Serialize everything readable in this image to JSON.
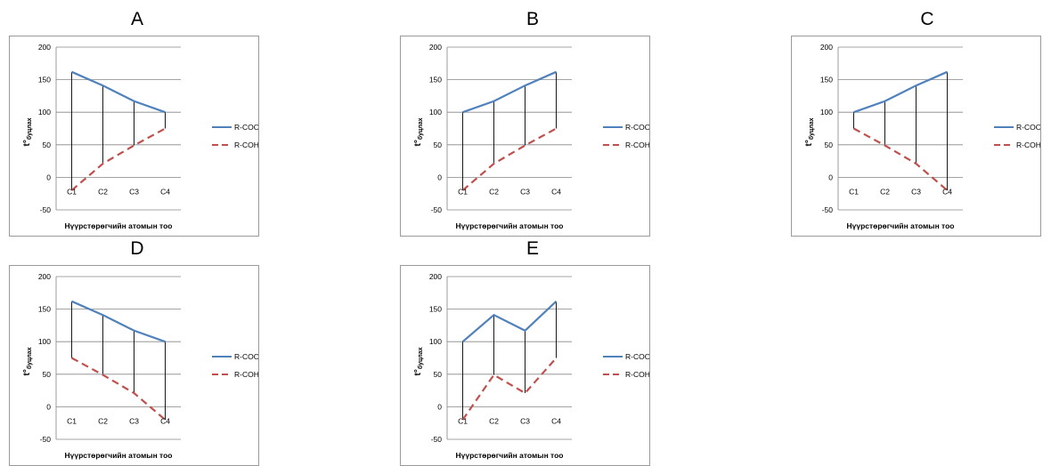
{
  "legend": {
    "cooh": "R-COOH",
    "coh": "R-COH"
  },
  "axis": {
    "ylabel_main": "t°",
    "ylabel_sub": "буцлах",
    "xlabel": "Нүүрстөрөгчийн атомын тоо"
  },
  "colors": {
    "cooh": "#4f81bd",
    "coh": "#c0504d",
    "grid": "#868686",
    "drop": "#000000"
  },
  "chart_data": [
    {
      "type": "line",
      "title": "A",
      "categories": [
        "C1",
        "C2",
        "C3",
        "C4"
      ],
      "ylim": [
        -50,
        200
      ],
      "yticks": [
        -50,
        0,
        50,
        100,
        150,
        200
      ],
      "series": [
        {
          "name": "R-COOH",
          "values": [
            162,
            141,
            117,
            100
          ]
        },
        {
          "name": "R-COH",
          "values": [
            -20,
            21,
            49,
            75
          ]
        }
      ]
    },
    {
      "type": "line",
      "title": "B",
      "categories": [
        "C1",
        "C2",
        "C3",
        "C4"
      ],
      "ylim": [
        -50,
        200
      ],
      "yticks": [
        -50,
        0,
        50,
        100,
        150,
        200
      ],
      "series": [
        {
          "name": "R-COOH",
          "values": [
            100,
            117,
            141,
            162
          ]
        },
        {
          "name": "R-COH",
          "values": [
            -20,
            21,
            49,
            75
          ]
        }
      ]
    },
    {
      "type": "line",
      "title": "C",
      "categories": [
        "C1",
        "C2",
        "C3",
        "C4"
      ],
      "ylim": [
        -50,
        200
      ],
      "yticks": [
        -50,
        0,
        50,
        100,
        150,
        200
      ],
      "series": [
        {
          "name": "R-COOH",
          "values": [
            100,
            117,
            141,
            162
          ]
        },
        {
          "name": "R-COH",
          "values": [
            75,
            49,
            21,
            -20
          ]
        }
      ]
    },
    {
      "type": "line",
      "title": "D",
      "categories": [
        "C1",
        "C2",
        "C3",
        "C4"
      ],
      "ylim": [
        -50,
        200
      ],
      "yticks": [
        -50,
        0,
        50,
        100,
        150,
        200
      ],
      "series": [
        {
          "name": "R-COOH",
          "values": [
            162,
            141,
            117,
            100
          ]
        },
        {
          "name": "R-COH",
          "values": [
            75,
            49,
            21,
            -20
          ]
        }
      ]
    },
    {
      "type": "line",
      "title": "E",
      "categories": [
        "C1",
        "C2",
        "C3",
        "C4"
      ],
      "ylim": [
        -50,
        200
      ],
      "yticks": [
        -50,
        0,
        50,
        100,
        150,
        200
      ],
      "series": [
        {
          "name": "R-COOH",
          "values": [
            100,
            141,
            117,
            162
          ]
        },
        {
          "name": "R-COH",
          "values": [
            -20,
            49,
            21,
            75
          ]
        }
      ]
    }
  ]
}
